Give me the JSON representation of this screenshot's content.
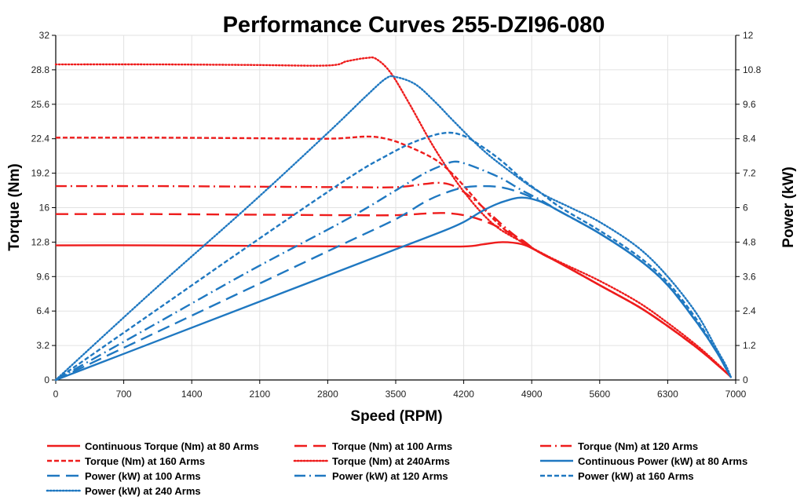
{
  "chart_data": {
    "type": "line",
    "title": "Performance Curves 255-DZI96-080",
    "xlabel": "Speed (RPM)",
    "ylabel_left": "Torque (Nm)",
    "ylabel_right": "Power (kW)",
    "xlim": [
      0,
      7000
    ],
    "ylim_left": [
      0,
      32
    ],
    "ylim_right": [
      0,
      12
    ],
    "xticks": [
      "0",
      "700",
      "1400",
      "2100",
      "2800",
      "3500",
      "4200",
      "4900",
      "5600",
      "6300",
      "7000"
    ],
    "yticks_left": [
      "0",
      "3.2",
      "6.4",
      "9.6",
      "12.8",
      "16",
      "19.2",
      "22.4",
      "25.6",
      "28.8",
      "32"
    ],
    "yticks_right": [
      "0",
      "1.2",
      "2.4",
      "3.6",
      "4.8",
      "6",
      "7.2",
      "8.4",
      "9.6",
      "10.8",
      "12"
    ],
    "grid": true,
    "legend_position": "bottom",
    "colors": {
      "torque": "#ee1c1c",
      "power": "#1f78c1"
    },
    "series": [
      {
        "name": "Continuous Torque (Nm) at 80 Arms",
        "axis": "left",
        "style": "solid",
        "x": [
          0,
          1000,
          2000,
          3000,
          3500,
          4200,
          4400,
          4600,
          4800,
          4950,
          5200,
          5600,
          6000,
          6300,
          6600,
          6800,
          6950
        ],
        "y": [
          12.5,
          12.5,
          12.45,
          12.4,
          12.4,
          12.4,
          12.6,
          12.8,
          12.6,
          12.0,
          10.8,
          8.8,
          6.8,
          5.0,
          3.0,
          1.5,
          0.3
        ]
      },
      {
        "name": "Torque (Nm) at 100 Arms",
        "axis": "left",
        "style": "longdash",
        "x": [
          0,
          1000,
          2000,
          3000,
          3500,
          3800,
          4000,
          4200,
          4400,
          4600,
          4800,
          4950,
          5200,
          5600,
          6000,
          6300,
          6600,
          6800,
          6950
        ],
        "y": [
          15.4,
          15.4,
          15.35,
          15.3,
          15.3,
          15.45,
          15.5,
          15.3,
          14.8,
          14.0,
          13.0,
          12.0,
          10.8,
          8.8,
          6.8,
          5.0,
          3.0,
          1.5,
          0.3
        ]
      },
      {
        "name": "Torque (Nm) at 120 Arms",
        "axis": "left",
        "style": "dashdot",
        "x": [
          0,
          1000,
          2000,
          3000,
          3500,
          3800,
          3950,
          4100,
          4300,
          4500,
          4700,
          4950,
          5200,
          5600,
          6000,
          6300,
          6600,
          6800,
          6950
        ],
        "y": [
          18.0,
          18.0,
          17.95,
          17.9,
          17.9,
          18.2,
          18.3,
          18.0,
          16.8,
          15.2,
          13.6,
          12.0,
          10.8,
          8.8,
          6.8,
          5.0,
          3.0,
          1.5,
          0.3
        ]
      },
      {
        "name": "Torque (Nm) at 160 Arms",
        "axis": "left",
        "style": "shortdash",
        "x": [
          0,
          1000,
          2000,
          2800,
          3200,
          3400,
          3600,
          3900,
          4100,
          4300,
          4500,
          4700,
          4950,
          5200,
          5600,
          6000,
          6300,
          6600,
          6800,
          6950
        ],
        "y": [
          22.5,
          22.5,
          22.45,
          22.4,
          22.6,
          22.4,
          21.8,
          20.5,
          19.0,
          17.0,
          15.0,
          13.4,
          12.0,
          10.8,
          8.8,
          6.8,
          5.0,
          3.0,
          1.5,
          0.3
        ]
      },
      {
        "name": "Torque (Nm) at 240Arms",
        "axis": "left",
        "style": "dotted",
        "x": [
          0,
          1000,
          2000,
          2800,
          3000,
          3200,
          3300,
          3450,
          3650,
          3900,
          4200,
          4500,
          4800,
          5000,
          5200,
          5600,
          6000,
          6300,
          6600,
          6800,
          6950
        ],
        "y": [
          29.3,
          29.3,
          29.25,
          29.2,
          29.6,
          29.9,
          29.8,
          28.5,
          25.5,
          21.5,
          17.5,
          14.5,
          12.8,
          11.8,
          10.9,
          9.2,
          7.2,
          5.3,
          3.2,
          1.6,
          0.3
        ]
      },
      {
        "name": "Continuous Power (kW) at 80 Arms",
        "axis": "right",
        "style": "solid",
        "x": [
          0,
          1000,
          2000,
          3000,
          3500,
          4000,
          4200,
          4400,
          4600,
          4800,
          5000,
          5200,
          5600,
          6000,
          6300,
          6600,
          6800,
          6900,
          6950
        ],
        "y": [
          0,
          1.3,
          2.6,
          3.9,
          4.55,
          5.2,
          5.5,
          5.9,
          6.2,
          6.35,
          6.2,
          5.85,
          5.1,
          4.2,
          3.3,
          2.0,
          1.0,
          0.4,
          0.1
        ]
      },
      {
        "name": "Power (kW) at 100 Arms",
        "axis": "right",
        "style": "longdash",
        "x": [
          0,
          1000,
          2000,
          3000,
          3500,
          3800,
          4000,
          4200,
          4400,
          4600,
          4800,
          5000,
          5200,
          5600,
          6000,
          6300,
          6600,
          6800,
          6900,
          6950
        ],
        "y": [
          0,
          1.6,
          3.2,
          4.8,
          5.6,
          6.2,
          6.5,
          6.7,
          6.75,
          6.7,
          6.5,
          6.2,
          5.85,
          5.1,
          4.2,
          3.3,
          2.0,
          1.0,
          0.4,
          0.1
        ]
      },
      {
        "name": "Power (kW) at 120 Arms",
        "axis": "right",
        "style": "dashdot",
        "x": [
          0,
          1000,
          2000,
          3000,
          3500,
          3800,
          4000,
          4100,
          4200,
          4400,
          4600,
          4800,
          5000,
          5200,
          5600,
          6000,
          6300,
          6600,
          6800,
          6900,
          6950
        ],
        "y": [
          0,
          1.9,
          3.8,
          5.6,
          6.6,
          7.2,
          7.5,
          7.6,
          7.55,
          7.3,
          7.0,
          6.6,
          6.25,
          5.85,
          5.1,
          4.2,
          3.3,
          2.0,
          1.0,
          0.4,
          0.1
        ]
      },
      {
        "name": "Power (kW) at 160 Arms",
        "axis": "right",
        "style": "shortdash",
        "x": [
          0,
          1000,
          2000,
          3000,
          3400,
          3700,
          4000,
          4200,
          4400,
          4600,
          4800,
          5000,
          5200,
          5600,
          6000,
          6300,
          6600,
          6800,
          6900,
          6950
        ],
        "y": [
          0,
          2.35,
          4.7,
          7.0,
          7.8,
          8.3,
          8.6,
          8.5,
          8.1,
          7.6,
          7.0,
          6.5,
          6.0,
          5.2,
          4.3,
          3.4,
          2.1,
          1.0,
          0.4,
          0.1
        ]
      },
      {
        "name": "Power (kW) at 240 Arms",
        "axis": "right",
        "style": "dotted",
        "x": [
          0,
          1000,
          2000,
          2800,
          3200,
          3400,
          3500,
          3700,
          3900,
          4100,
          4400,
          4700,
          5000,
          5300,
          5600,
          6000,
          6300,
          6600,
          6800,
          6900,
          6950
        ],
        "y": [
          0,
          3.1,
          6.1,
          8.6,
          9.9,
          10.5,
          10.55,
          10.3,
          9.7,
          9.0,
          8.0,
          7.2,
          6.5,
          6.0,
          5.5,
          4.6,
          3.6,
          2.3,
          1.1,
          0.5,
          0.1
        ]
      }
    ]
  }
}
